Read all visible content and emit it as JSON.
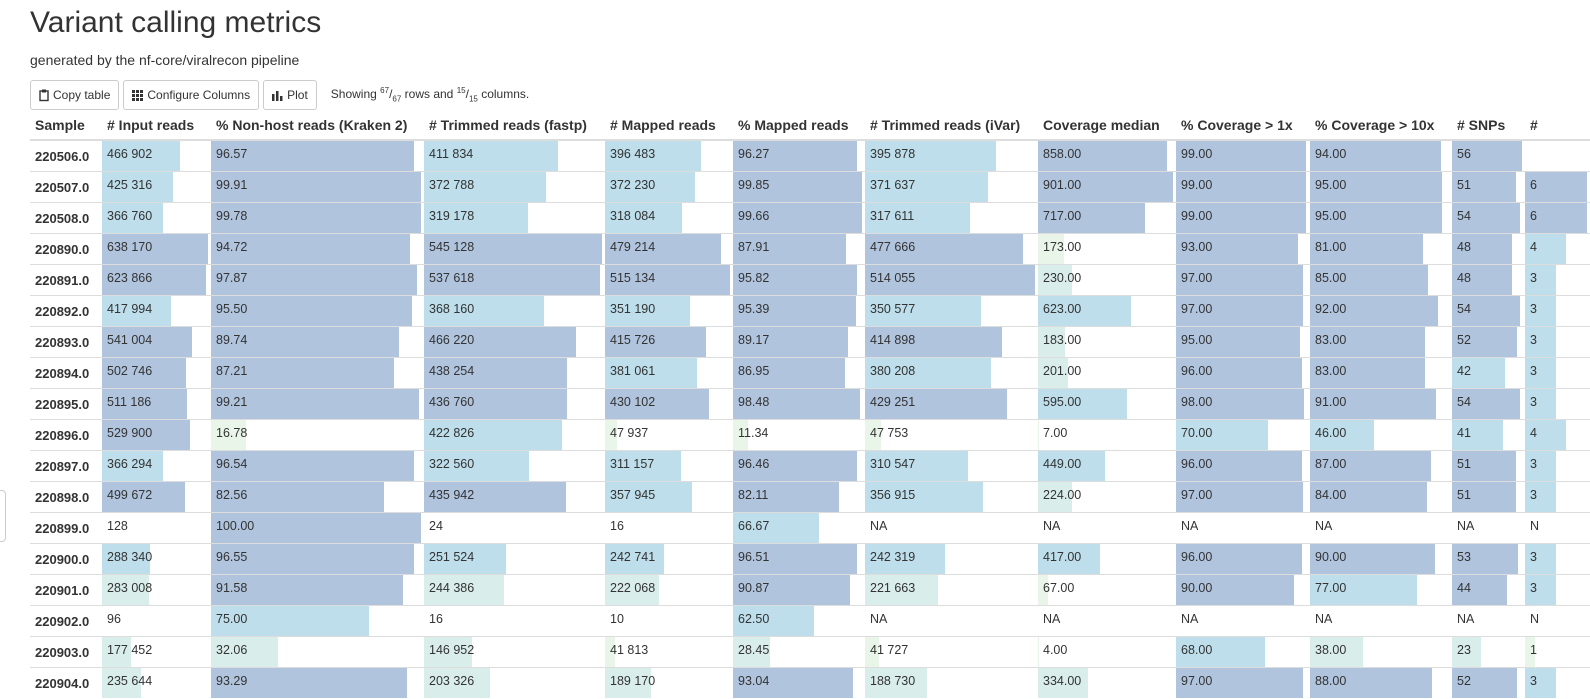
{
  "title": "Variant calling metrics",
  "subtitle": "generated by the nf-core/viralrecon pipeline",
  "toolbar": {
    "copy_label": "Copy table",
    "configure_label": "Configure Columns",
    "plot_label": "Plot",
    "showing_prefix": "Showing",
    "rows_shown": "67",
    "rows_total": "67",
    "rows_word": "rows and",
    "cols_shown": "15",
    "cols_total": "15",
    "cols_word": "columns."
  },
  "icons": {
    "copy": "clipboard-icon",
    "configure": "grid-icon",
    "plot": "bar-chart-icon"
  },
  "colors": {
    "strong": "#b0c4de",
    "medium": "#bddeea",
    "light": "#d9eeea",
    "faint": "#e8f5e8"
  },
  "table": {
    "columns": [
      "Sample",
      "# Input reads",
      "% Non-host reads (Kraken 2)",
      "# Trimmed reads (fastp)",
      "# Mapped reads",
      "% Mapped reads",
      "# Trimmed reads (iVar)",
      "Coverage median",
      "% Coverage > 1x",
      "% Coverage > 10x",
      "# SNPs",
      "#"
    ],
    "rows": [
      {
        "sample": "220506.0",
        "cells": [
          "466 902",
          "96.57",
          "411 834",
          "396 483",
          "96.27",
          "395 878",
          "858.00",
          "99.00",
          "94.00",
          "56",
          ""
        ]
      },
      {
        "sample": "220507.0",
        "cells": [
          "425 316",
          "99.91",
          "372 788",
          "372 230",
          "99.85",
          "371 637",
          "901.00",
          "99.00",
          "95.00",
          "51",
          "6"
        ]
      },
      {
        "sample": "220508.0",
        "cells": [
          "366 760",
          "99.78",
          "319 178",
          "318 084",
          "99.66",
          "317 611",
          "717.00",
          "99.00",
          "95.00",
          "54",
          "6"
        ]
      },
      {
        "sample": "220890.0",
        "cells": [
          "638 170",
          "94.72",
          "545 128",
          "479 214",
          "87.91",
          "477 666",
          "173.00",
          "93.00",
          "81.00",
          "48",
          "4"
        ]
      },
      {
        "sample": "220891.0",
        "cells": [
          "623 866",
          "97.87",
          "537 618",
          "515 134",
          "95.82",
          "514 055",
          "230.00",
          "97.00",
          "85.00",
          "48",
          "3"
        ]
      },
      {
        "sample": "220892.0",
        "cells": [
          "417 994",
          "95.50",
          "368 160",
          "351 190",
          "95.39",
          "350 577",
          "623.00",
          "97.00",
          "92.00",
          "54",
          "3"
        ]
      },
      {
        "sample": "220893.0",
        "cells": [
          "541 004",
          "89.74",
          "466 220",
          "415 726",
          "89.17",
          "414 898",
          "183.00",
          "95.00",
          "83.00",
          "52",
          "3"
        ]
      },
      {
        "sample": "220894.0",
        "cells": [
          "502 746",
          "87.21",
          "438 254",
          "381 061",
          "86.95",
          "380 208",
          "201.00",
          "96.00",
          "83.00",
          "42",
          "3"
        ]
      },
      {
        "sample": "220895.0",
        "cells": [
          "511 186",
          "99.21",
          "436 760",
          "430 102",
          "98.48",
          "429 251",
          "595.00",
          "98.00",
          "91.00",
          "54",
          "3"
        ]
      },
      {
        "sample": "220896.0",
        "cells": [
          "529 900",
          "16.78",
          "422 826",
          "47 937",
          "11.34",
          "47 753",
          "7.00",
          "70.00",
          "46.00",
          "41",
          "4"
        ]
      },
      {
        "sample": "220897.0",
        "cells": [
          "366 294",
          "96.54",
          "322 560",
          "311 157",
          "96.46",
          "310 547",
          "449.00",
          "96.00",
          "87.00",
          "51",
          "3"
        ]
      },
      {
        "sample": "220898.0",
        "cells": [
          "499 672",
          "82.56",
          "435 942",
          "357 945",
          "82.11",
          "356 915",
          "224.00",
          "97.00",
          "84.00",
          "51",
          "3"
        ]
      },
      {
        "sample": "220899.0",
        "cells": [
          "128",
          "100.00",
          "24",
          "16",
          "66.67",
          "NA",
          "NA",
          "NA",
          "NA",
          "NA",
          "N"
        ]
      },
      {
        "sample": "220900.0",
        "cells": [
          "288 340",
          "96.55",
          "251 524",
          "242 741",
          "96.51",
          "242 319",
          "417.00",
          "96.00",
          "90.00",
          "53",
          "3"
        ]
      },
      {
        "sample": "220901.0",
        "cells": [
          "283 008",
          "91.58",
          "244 386",
          "222 068",
          "90.87",
          "221 663",
          "67.00",
          "90.00",
          "77.00",
          "44",
          "3"
        ]
      },
      {
        "sample": "220902.0",
        "cells": [
          "96",
          "75.00",
          "16",
          "10",
          "62.50",
          "NA",
          "NA",
          "NA",
          "NA",
          "NA",
          "N"
        ]
      },
      {
        "sample": "220903.0",
        "cells": [
          "177 452",
          "32.06",
          "146 952",
          "41 813",
          "28.45",
          "41 727",
          "4.00",
          "68.00",
          "38.00",
          "23",
          "1"
        ]
      },
      {
        "sample": "220904.0",
        "cells": [
          "235 644",
          "93.29",
          "203 326",
          "189 170",
          "93.04",
          "188 730",
          "334.00",
          "97.00",
          "88.00",
          "52",
          "3"
        ]
      }
    ]
  }
}
